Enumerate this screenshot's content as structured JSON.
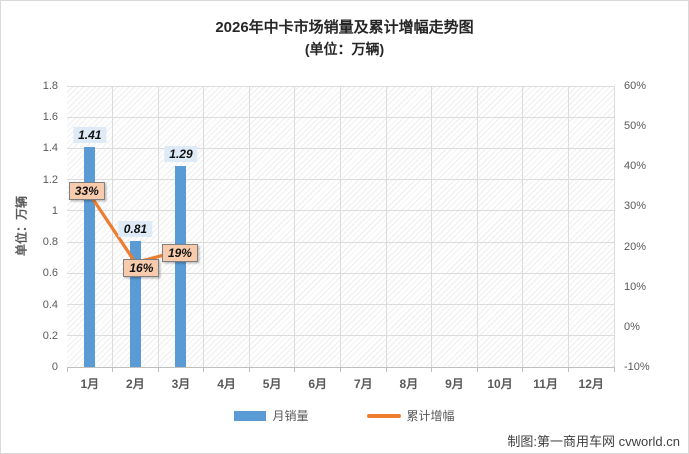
{
  "header": {
    "title": "2026年中卡市场销量及累计增幅走势图",
    "subtitle": "(单位：万辆)"
  },
  "footer": {
    "credit": "制图:第一商用车网 cvworld.cn"
  },
  "legend": {
    "items": [
      {
        "label": "月销量",
        "marker": "bar",
        "color": "#5B9BD5"
      },
      {
        "label": "累计增幅",
        "marker": "line",
        "color": "#ED7D31"
      }
    ]
  },
  "chart_data": {
    "type": "bar",
    "subtype": "bar+line combo, dual axis",
    "title": "2026年中卡市场销量及累计增幅走势图 (单位：万辆)",
    "categories": [
      "1月",
      "2月",
      "3月",
      "4月",
      "5月",
      "6月",
      "7月",
      "8月",
      "9月",
      "10月",
      "11月",
      "12月"
    ],
    "series": [
      {
        "name": "月销量",
        "type": "bar",
        "axis": "left",
        "color": "#5B9BD5",
        "values": [
          1.41,
          0.81,
          1.29,
          null,
          null,
          null,
          null,
          null,
          null,
          null,
          null,
          null
        ],
        "data_labels": [
          "1.41",
          "0.81",
          "1.29",
          null,
          null,
          null,
          null,
          null,
          null,
          null,
          null,
          null
        ],
        "label_bg": "#DEEBF7"
      },
      {
        "name": "累计增幅",
        "type": "line",
        "axis": "right",
        "color": "#ED7D31",
        "values": [
          33,
          16,
          19,
          null,
          null,
          null,
          null,
          null,
          null,
          null,
          null,
          null
        ],
        "data_labels": [
          "33%",
          "16%",
          "19%",
          null,
          null,
          null,
          null,
          null,
          null,
          null,
          null,
          null
        ],
        "label_bg": "#F8CBAD",
        "label_border": "#7F7F7F",
        "label_offsets": [
          [
            -3,
            -3
          ],
          [
            6,
            5
          ],
          [
            -1,
            2
          ],
          null,
          null,
          null,
          null,
          null,
          null,
          null,
          null,
          null
        ]
      }
    ],
    "left_axis": {
      "title": "单位：万辆",
      "min": 0,
      "max": 1.8,
      "step": 0.2,
      "tick_labels": [
        "0",
        "0.2",
        "0.4",
        "0.6",
        "0.8",
        "1",
        "1.2",
        "1.4",
        "1.6",
        "1.8"
      ]
    },
    "right_axis": {
      "min": -10,
      "max": 60,
      "step": 10,
      "tick_labels": [
        "-10%",
        "0%",
        "10%",
        "20%",
        "30%",
        "40%",
        "50%",
        "60%"
      ]
    },
    "grid": {
      "horizontal": true,
      "vertical": true,
      "color": "#DCDCDC"
    },
    "plot_background": "white with light diagonal hatch",
    "legend_position": "bottom"
  }
}
